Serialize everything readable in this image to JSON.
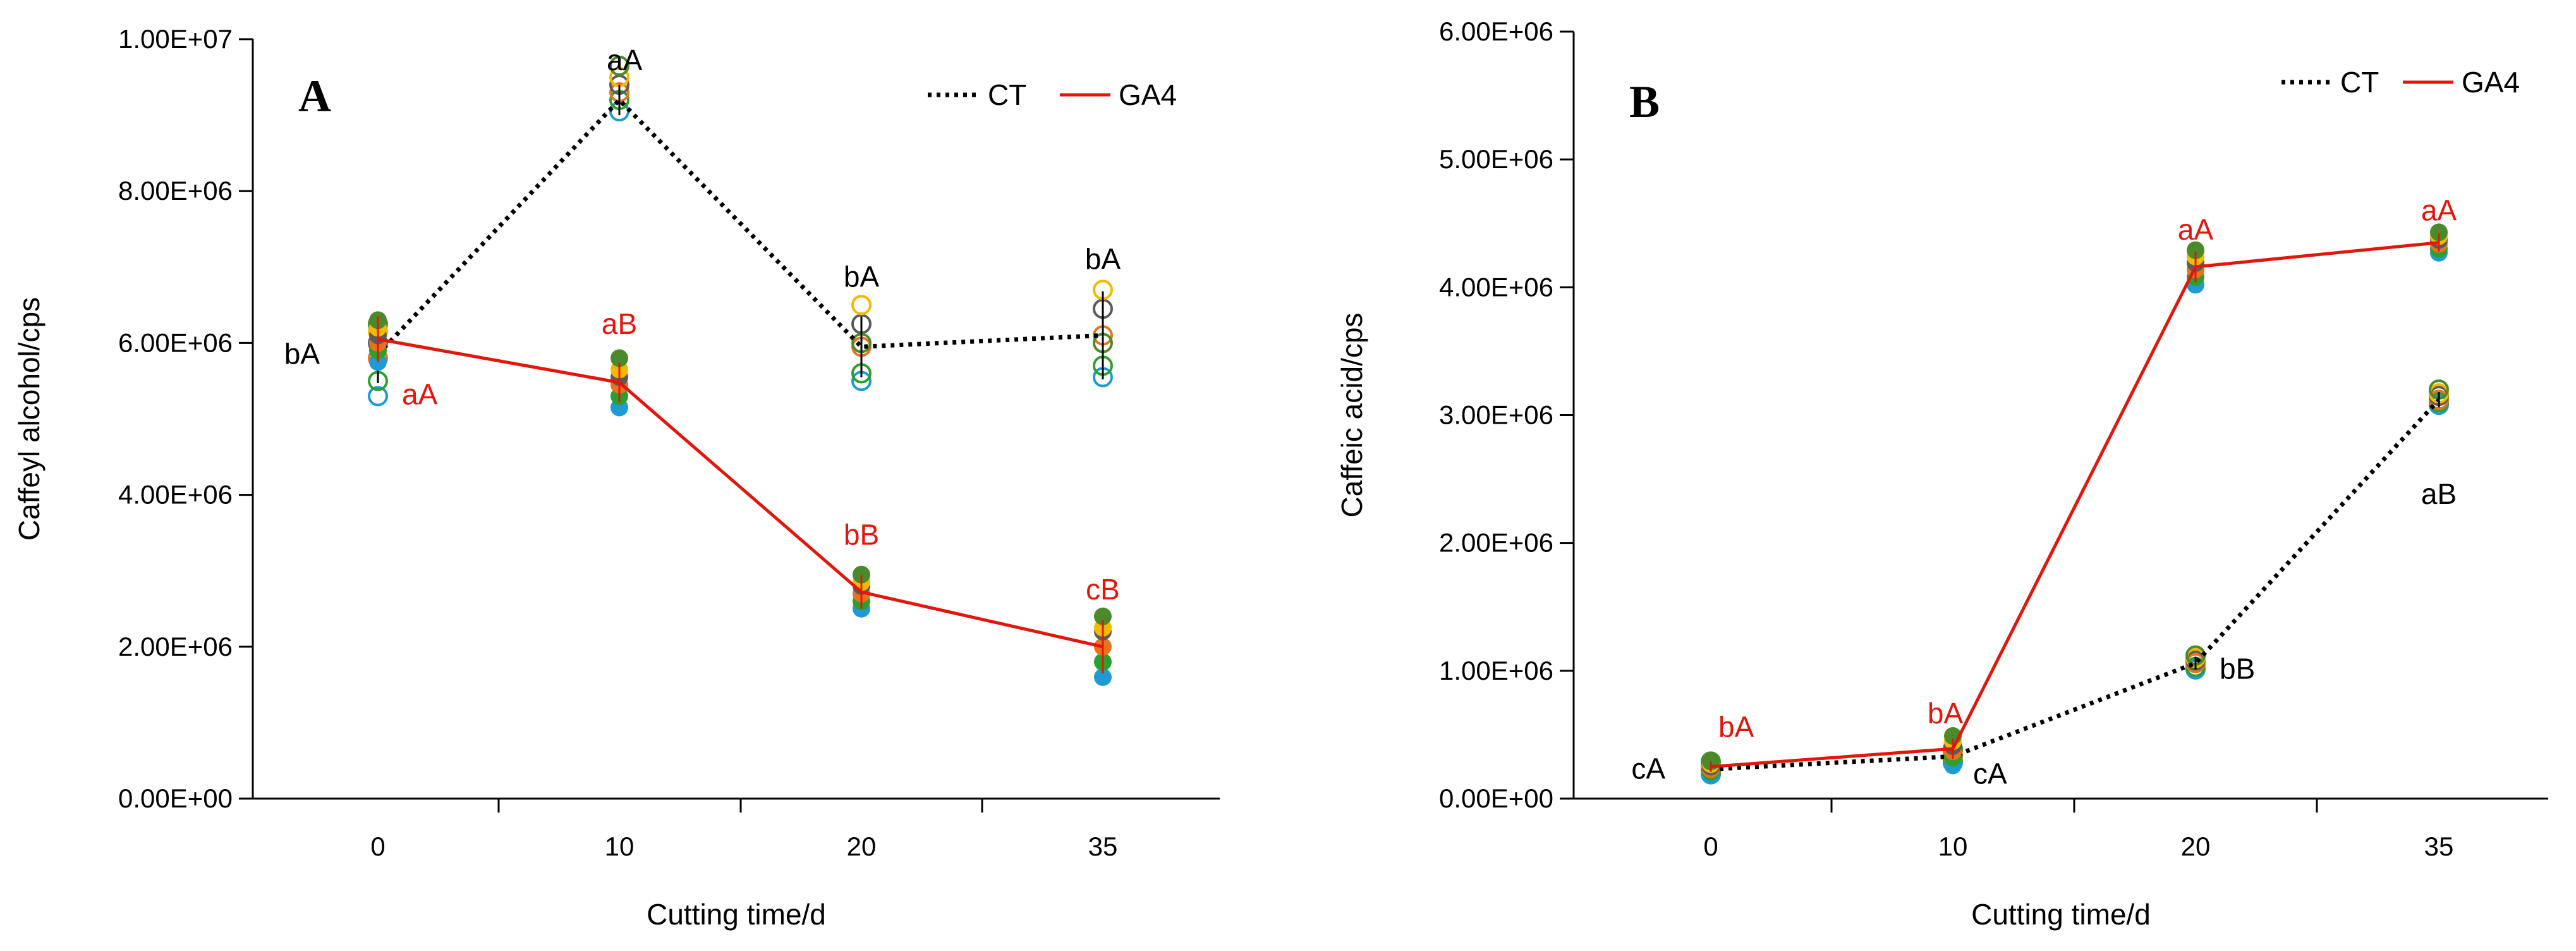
{
  "colors": {
    "ct": "#000000",
    "ga4": "#e3160b",
    "point_palette": [
      "#1f9ad6",
      "#2ca02c",
      "#e8731e",
      "#5b5b5b",
      "#f7b900",
      "#4a8a2a"
    ]
  },
  "chart_data": [
    {
      "panel": "A",
      "type": "line",
      "title": "",
      "xlabel": "Cutting time/d",
      "ylabel": "Caffeyl alcohol/cps",
      "categories": [
        "0",
        "10",
        "20",
        "35"
      ],
      "ylim": [
        0,
        10000000
      ],
      "yticks": [
        0,
        2000000,
        4000000,
        6000000,
        8000000,
        10000000
      ],
      "ytick_labels": [
        "0.00E+00",
        "2.00E+06",
        "4.00E+06",
        "6.00E+06",
        "8.00E+06",
        "1.00E+07"
      ],
      "legend": {
        "position": "top-right",
        "entries": [
          "CT",
          "GA4"
        ]
      },
      "series": [
        {
          "name": "CT",
          "style": "dotted",
          "values": [
            5850000,
            9200000,
            5950000,
            6100000
          ],
          "errors": [
            380000,
            200000,
            400000,
            580000
          ],
          "replicates": [
            [
              5300000,
              5500000,
              5800000,
              6000000,
              6150000,
              6250000
            ],
            [
              9050000,
              9200000,
              9300000,
              9400000,
              9500000,
              9650000
            ],
            [
              5500000,
              5600000,
              5950000,
              6250000,
              6500000,
              6000000
            ],
            [
              5550000,
              5700000,
              6100000,
              6450000,
              6700000,
              6000000
            ]
          ],
          "markers": "open",
          "labels": [
            "bA",
            "aA",
            "bA",
            "bA"
          ]
        },
        {
          "name": "GA4",
          "style": "solid",
          "values": [
            6050000,
            5480000,
            2720000,
            2000000
          ],
          "errors": [
            300000,
            260000,
            220000,
            350000
          ],
          "replicates": [
            [
              5750000,
              5900000,
              6000000,
              6100000,
              6200000,
              6300000
            ],
            [
              5150000,
              5300000,
              5450000,
              5550000,
              5650000,
              5800000
            ],
            [
              2500000,
              2600000,
              2700000,
              2800000,
              2850000,
              2950000
            ],
            [
              1600000,
              1800000,
              2000000,
              2200000,
              2250000,
              2400000
            ]
          ],
          "markers": "filled",
          "labels": [
            "aA",
            "aB",
            "bB",
            "cB"
          ]
        }
      ]
    },
    {
      "panel": "B",
      "type": "line",
      "title": "",
      "xlabel": "Cutting time/d",
      "ylabel": "Caffeic acid/cps",
      "categories": [
        "0",
        "10",
        "20",
        "35"
      ],
      "ylim": [
        0,
        6000000
      ],
      "yticks": [
        0,
        1000000,
        2000000,
        3000000,
        4000000,
        5000000,
        6000000
      ],
      "ytick_labels": [
        "0.00E+00",
        "1.00E+06",
        "2.00E+06",
        "3.00E+06",
        "4.00E+06",
        "5.00E+06",
        "6.00E+06"
      ],
      "legend": {
        "position": "top-right",
        "entries": [
          "CT",
          "GA4"
        ]
      },
      "series": [
        {
          "name": "CT",
          "style": "dotted",
          "values": [
            230000,
            330000,
            1060000,
            3120000
          ],
          "errors": [
            40000,
            50000,
            50000,
            60000
          ],
          "replicates": [
            [
              190000,
              210000,
              230000,
              250000,
              270000,
              290000
            ],
            [
              280000,
              300000,
              330000,
              350000,
              370000,
              390000
            ],
            [
              1010000,
              1030000,
              1060000,
              1080000,
              1100000,
              1120000
            ],
            [
              3080000,
              3100000,
              3120000,
              3150000,
              3170000,
              3200000
            ]
          ],
          "markers": "open",
          "labels": [
            "cA",
            "cA",
            "bB",
            "aB"
          ]
        },
        {
          "name": "GA4",
          "style": "solid",
          "values": [
            250000,
            390000,
            4160000,
            4350000
          ],
          "errors": [
            40000,
            80000,
            120000,
            70000
          ],
          "replicates": [
            [
              180000,
              210000,
              230000,
              250000,
              270000,
              290000
            ],
            [
              260000,
              320000,
              370000,
              410000,
              450000,
              490000
            ],
            [
              4020000,
              4080000,
              4140000,
              4190000,
              4240000,
              4290000
            ],
            [
              4270000,
              4300000,
              4340000,
              4370000,
              4400000,
              4430000
            ]
          ],
          "markers": "filled",
          "labels": [
            "bA",
            "bA",
            "aA",
            "aA"
          ]
        }
      ]
    }
  ]
}
